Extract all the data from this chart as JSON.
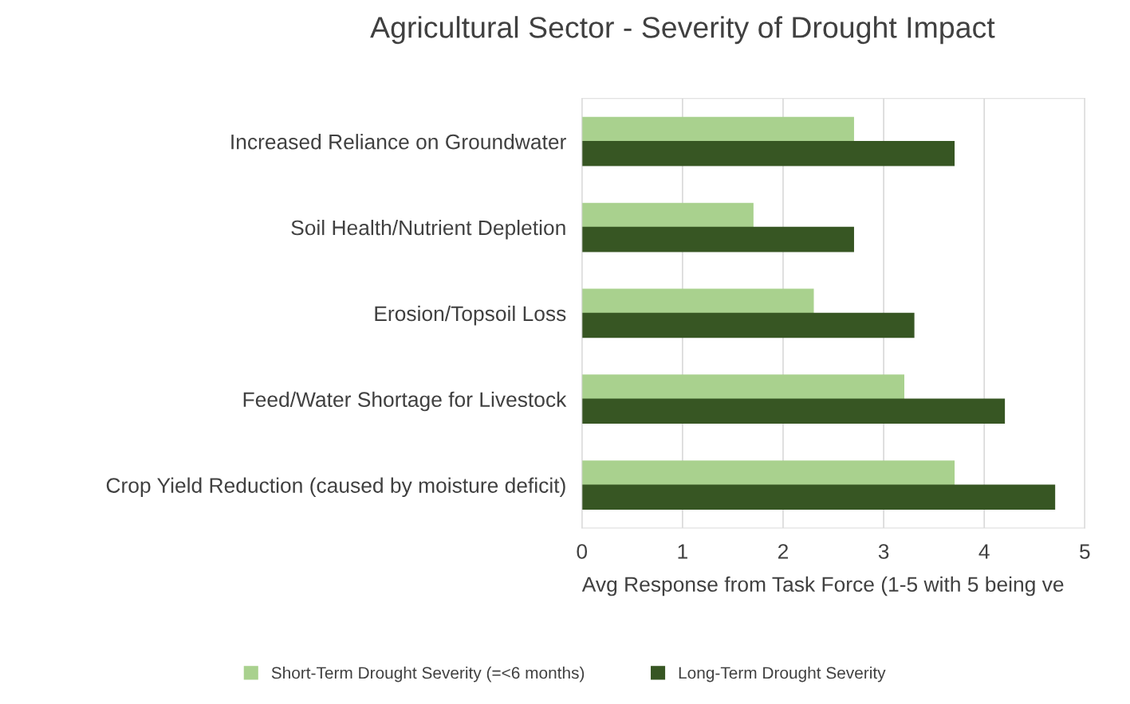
{
  "chart_data": {
    "type": "bar",
    "orientation": "horizontal",
    "title": "Agricultural Sector - Severity of Drought Impact",
    "xlabel": "Avg Response from Task Force (1-5 with 5 being ve",
    "categories": [
      "Increased Reliance on Groundwater",
      "Soil Health/Nutrient Depletion",
      "Erosion/Topsoil Loss",
      "Feed/Water Shortage for Livestock",
      "Crop Yield Reduction (caused by moisture deficit)"
    ],
    "series": [
      {
        "name": "Short-Term Drought Severity (=<6 months)",
        "color": "#a9d18e",
        "values": [
          2.7,
          1.7,
          2.3,
          3.2,
          3.7
        ]
      },
      {
        "name": "Long-Term Drought Severity",
        "color": "#375623",
        "values": [
          3.7,
          2.7,
          3.3,
          4.2,
          4.7
        ]
      }
    ],
    "xlim": [
      0,
      5
    ],
    "xticks": [
      0,
      1,
      2,
      3,
      4,
      5
    ],
    "grid": "x",
    "legend": "bottom"
  }
}
